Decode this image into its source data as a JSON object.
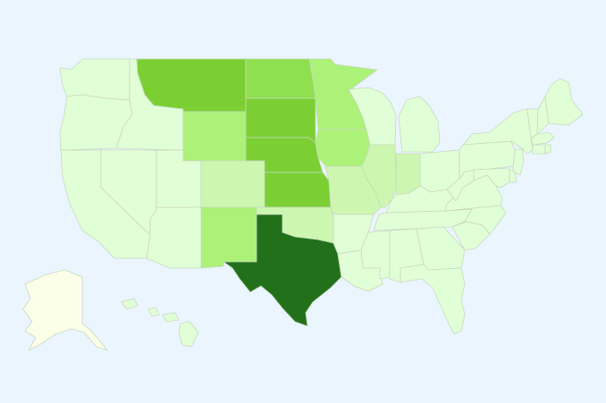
{
  "map": {
    "region": "United States",
    "colors": {
      "background": "#eaf5fe",
      "border": "#c9d8c1",
      "level_0": "#fcffe8",
      "level_1": "#e1ffd6",
      "level_2": "#cdf7b0",
      "level_3": "#acf178",
      "level_4": "#8fe04f",
      "level_5": "#7bcf33",
      "level_6": "#22711a"
    },
    "states": [
      {
        "code": "WA",
        "level": 1
      },
      {
        "code": "OR",
        "level": 1
      },
      {
        "code": "CA",
        "level": 1
      },
      {
        "code": "NV",
        "level": 1
      },
      {
        "code": "ID",
        "level": 1
      },
      {
        "code": "UT",
        "level": 1
      },
      {
        "code": "AZ",
        "level": 1
      },
      {
        "code": "MT",
        "level": 5
      },
      {
        "code": "WY",
        "level": 3
      },
      {
        "code": "CO",
        "level": 2
      },
      {
        "code": "NM",
        "level": 3
      },
      {
        "code": "ND",
        "level": 4
      },
      {
        "code": "SD",
        "level": 5
      },
      {
        "code": "NE",
        "level": 5
      },
      {
        "code": "KS",
        "level": 5
      },
      {
        "code": "OK",
        "level": 2
      },
      {
        "code": "TX",
        "level": 6
      },
      {
        "code": "MN",
        "level": 3
      },
      {
        "code": "IA",
        "level": 3
      },
      {
        "code": "MO",
        "level": 2
      },
      {
        "code": "AR",
        "level": 1
      },
      {
        "code": "LA",
        "level": 1
      },
      {
        "code": "WI",
        "level": 1
      },
      {
        "code": "IL",
        "level": 2
      },
      {
        "code": "MI",
        "level": 1
      },
      {
        "code": "IN",
        "level": 2
      },
      {
        "code": "OH",
        "level": 1
      },
      {
        "code": "KY",
        "level": 1
      },
      {
        "code": "TN",
        "level": 1
      },
      {
        "code": "MS",
        "level": 1
      },
      {
        "code": "AL",
        "level": 1
      },
      {
        "code": "GA",
        "level": 1
      },
      {
        "code": "FL",
        "level": 1
      },
      {
        "code": "SC",
        "level": 1
      },
      {
        "code": "NC",
        "level": 1
      },
      {
        "code": "VA",
        "level": 1
      },
      {
        "code": "WV",
        "level": 1
      },
      {
        "code": "PA",
        "level": 1
      },
      {
        "code": "NY",
        "level": 1
      },
      {
        "code": "VT",
        "level": 1
      },
      {
        "code": "NH",
        "level": 1
      },
      {
        "code": "ME",
        "level": 1
      },
      {
        "code": "MA",
        "level": 1
      },
      {
        "code": "CT",
        "level": 1
      },
      {
        "code": "RI",
        "level": 1
      },
      {
        "code": "NJ",
        "level": 1
      },
      {
        "code": "DE",
        "level": 1
      },
      {
        "code": "MD",
        "level": 1
      },
      {
        "code": "AK",
        "level": 0
      },
      {
        "code": "HI",
        "level": 1
      }
    ]
  }
}
